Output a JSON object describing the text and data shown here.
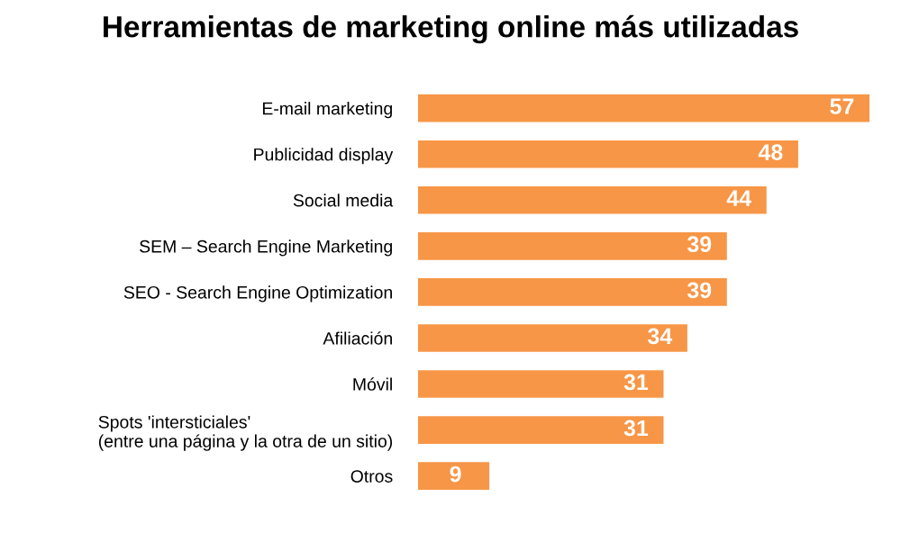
{
  "chart_data": {
    "type": "bar",
    "orientation": "horizontal",
    "title": "Herramientas de marketing online más utilizadas",
    "categories": [
      "E-mail marketing",
      "Publicidad display",
      "Social media",
      "SEM – Search Engine Marketing",
      "SEO - Search Engine Optimization",
      "Afiliación",
      "Móvil",
      "Spots 'intersticiales'\n(entre una página y la otra de un sitio)",
      "Otros"
    ],
    "values": [
      57,
      48,
      44,
      39,
      39,
      34,
      31,
      31,
      9
    ],
    "color": "#f79646",
    "data_labels": true,
    "grid": false,
    "legend": false
  }
}
